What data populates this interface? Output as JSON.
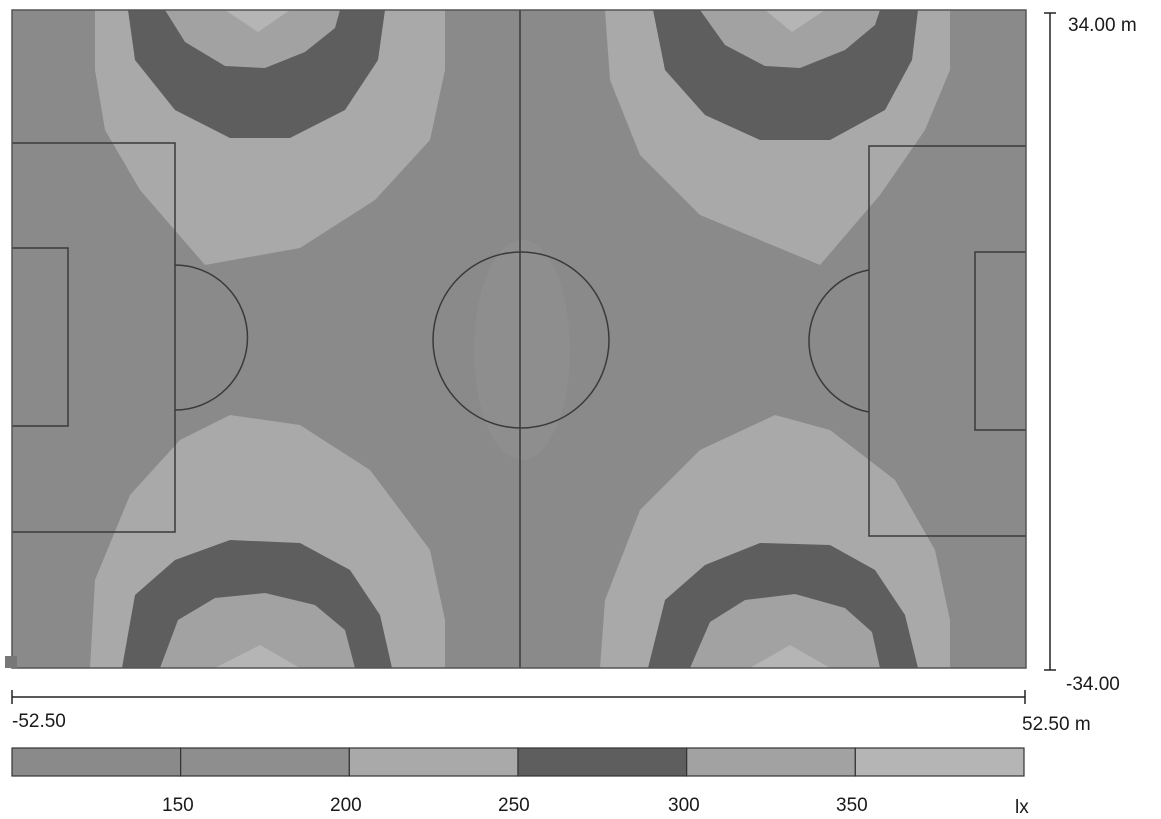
{
  "plot": {
    "y_axis": {
      "top_label": "34.00 m",
      "bottom_label": "-34.00"
    },
    "x_axis": {
      "left_label": "-52.50",
      "right_label": "52.50 m"
    }
  },
  "legend": {
    "unit": "lx",
    "tick_labels": [
      "150",
      "200",
      "250",
      "300",
      "350"
    ],
    "bands": [
      {
        "color": "#8a8a8a"
      },
      {
        "color": "#8e8e8e"
      },
      {
        "color": "#a9a9a9"
      },
      {
        "color": "#5e5e5e"
      },
      {
        "color": "#a2a2a2"
      },
      {
        "color": "#b5b5b5"
      }
    ]
  },
  "colors": {
    "field_base": "#8a8a8a",
    "center_zone": "#8e8e8e",
    "outer_ring": "#a9a9a9",
    "dark_ring": "#5e5e5e",
    "inner_light": "#a2a2a2",
    "hotspot": "#b5b5b5",
    "lines": "#3a3a3a"
  }
}
